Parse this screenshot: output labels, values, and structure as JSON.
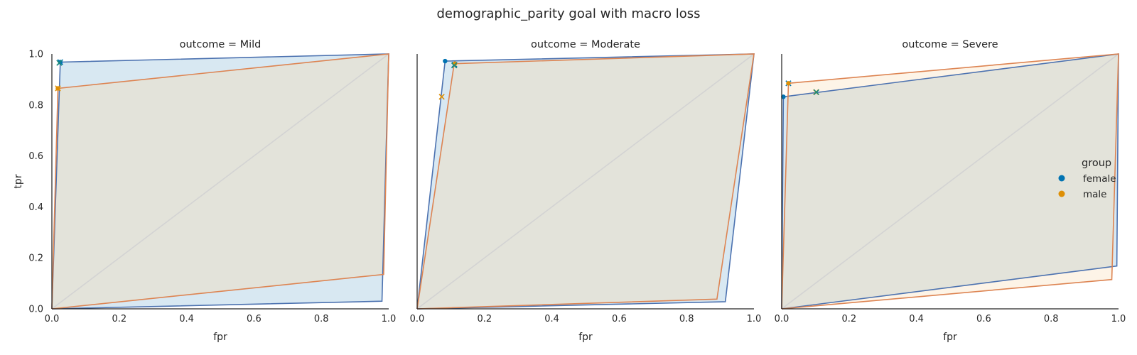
{
  "title": "demographic_parity goal with macro loss",
  "chart_data": {
    "type": "line",
    "title": "demographic_parity goal with macro loss",
    "xlabel": "fpr",
    "ylabel": "tpr",
    "xlim": [
      0,
      1
    ],
    "ylim": [
      0,
      1
    ],
    "xticks": [
      "0.0",
      "0.2",
      "0.4",
      "0.6",
      "0.8",
      "1.0"
    ],
    "yticks": [
      "0.0",
      "0.2",
      "0.4",
      "0.6",
      "0.8",
      "1.0"
    ],
    "grid": false,
    "legend": {
      "title": "group",
      "placement": "right",
      "entries": [
        {
          "label": "female",
          "color": "#0173b2"
        },
        {
          "label": "male",
          "color": "#de8f05"
        }
      ]
    },
    "colors": {
      "female_line": "#4c72b0",
      "female_fill": "#d8e8f2",
      "male_line": "#dd8452",
      "male_fill": "#fbecd7",
      "overlap_fill": "#e3e3da",
      "diagonal": "#d3d3d3",
      "goal_marker": "#1a8a7a"
    },
    "facets": [
      {
        "title": "outcome = Mild",
        "series": [
          {
            "name": "female",
            "hull": [
              [
                0,
                0
              ],
              [
                0.025,
                0.968
              ],
              [
                1,
                1
              ],
              [
                0.98,
                0.03
              ],
              [
                0,
                0
              ]
            ],
            "point": [
              0.025,
              0.968
            ],
            "x_marker": [
              0.025,
              0.968
            ]
          },
          {
            "name": "male",
            "hull": [
              [
                0,
                0
              ],
              [
                0.018,
                0.865
              ],
              [
                1,
                1
              ],
              [
                0.985,
                0.135
              ],
              [
                0,
                0
              ]
            ],
            "point": [
              0.018,
              0.865
            ],
            "x_marker": [
              0.018,
              0.865
            ]
          }
        ],
        "goal": [
          0.022,
          0.965
        ]
      },
      {
        "title": "outcome = Moderate",
        "series": [
          {
            "name": "female",
            "hull": [
              [
                0,
                0
              ],
              [
                0.083,
                0.972
              ],
              [
                1,
                1
              ],
              [
                0.915,
                0.028
              ],
              [
                0,
                0
              ]
            ],
            "point": [
              0.083,
              0.972
            ],
            "x_marker": [
              0.111,
              0.958
            ]
          },
          {
            "name": "male",
            "hull": [
              [
                0,
                0
              ],
              [
                0.11,
                0.962
              ],
              [
                1,
                1
              ],
              [
                0.89,
                0.038
              ],
              [
                0,
                0
              ]
            ],
            "point": [
              0.112,
              0.962
            ],
            "x_marker": [
              0.073,
              0.832
            ]
          }
        ],
        "goal": [
          0.11,
          0.955
        ]
      },
      {
        "title": "outcome = Severe",
        "series": [
          {
            "name": "female",
            "hull": [
              [
                0,
                0
              ],
              [
                0.005,
                0.832
              ],
              [
                1,
                1
              ],
              [
                0.995,
                0.168
              ],
              [
                0,
                0
              ]
            ],
            "point": [
              0.005,
              0.832
            ],
            "x_marker": [
              0.02,
              0.885
            ]
          },
          {
            "name": "male",
            "hull": [
              [
                0,
                0
              ],
              [
                0.02,
                0.885
              ],
              [
                1,
                1
              ],
              [
                0.98,
                0.115
              ],
              [
                0,
                0
              ]
            ],
            "point": [
              0.02,
              0.885
            ],
            "x_marker": [
              0.102,
              0.85
            ]
          }
        ],
        "goal": [
          0.103,
          0.85
        ]
      }
    ]
  }
}
